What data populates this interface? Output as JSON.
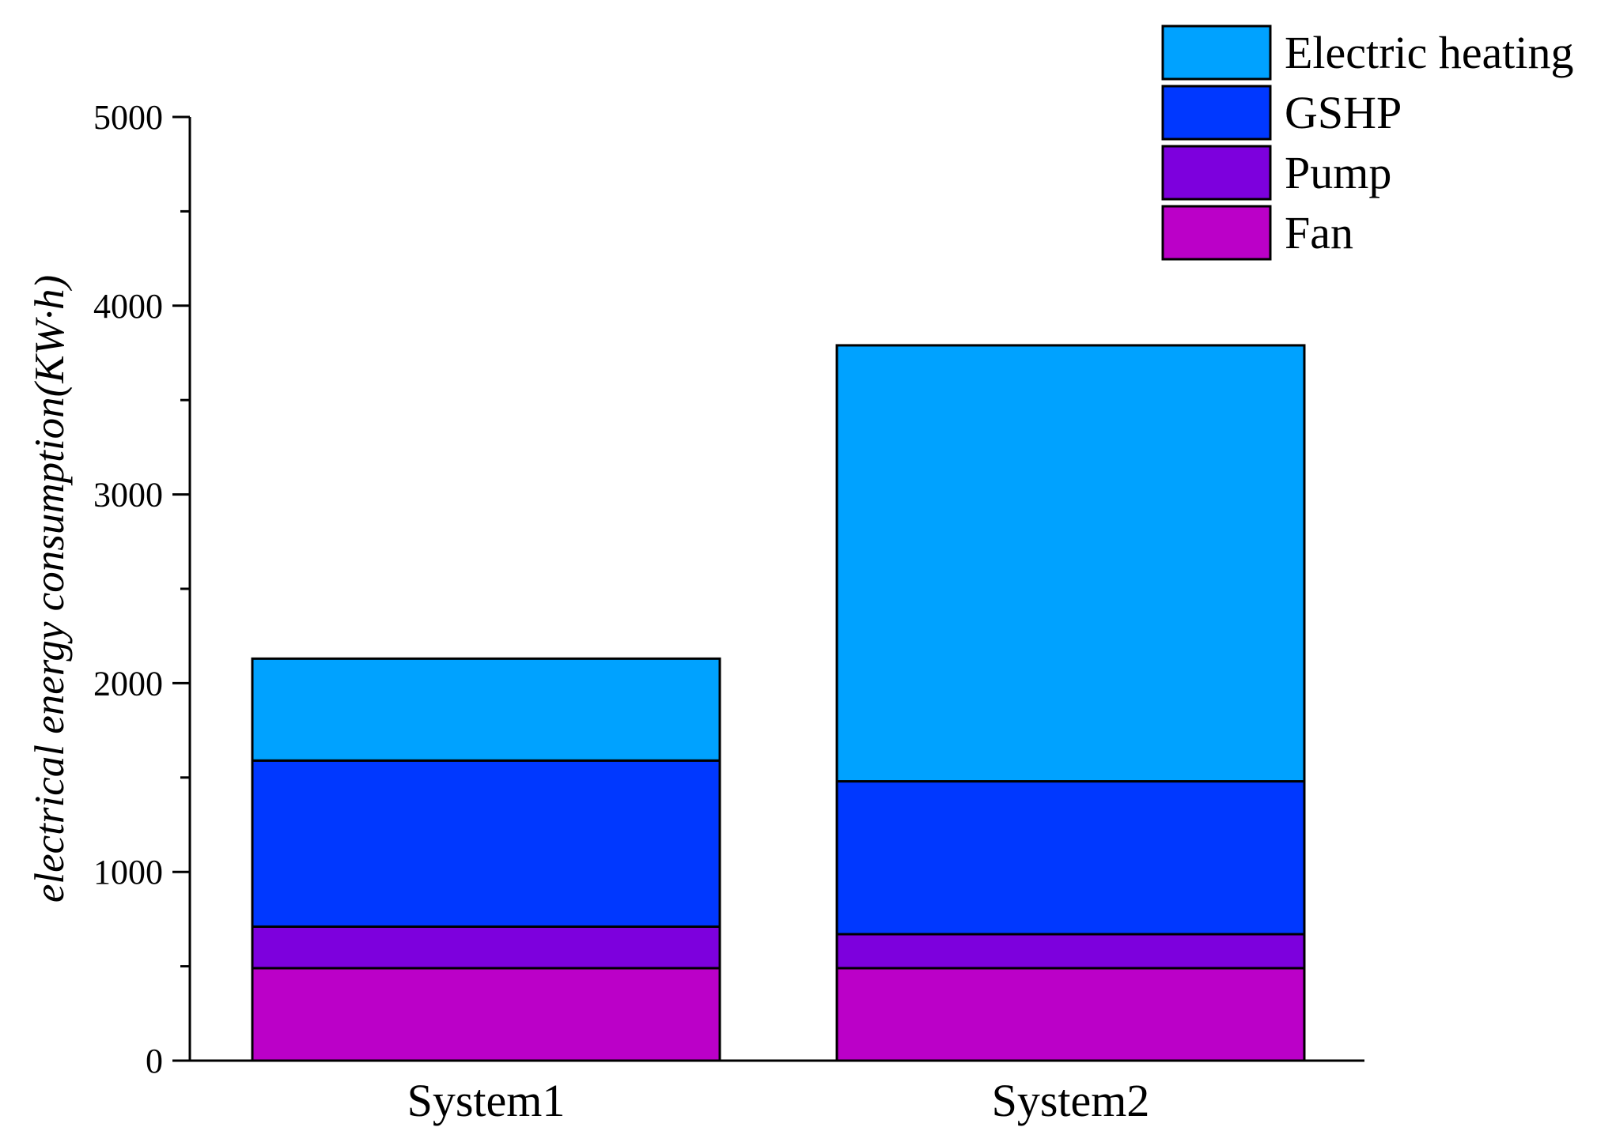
{
  "chart_data": {
    "type": "bar",
    "stacked": true,
    "categories": [
      "System1",
      "System2"
    ],
    "series": [
      {
        "name": "Fan",
        "values": [
          490,
          490
        ],
        "color": "#bb00c8"
      },
      {
        "name": "Pump",
        "values": [
          220,
          180
        ],
        "color": "#7d00dd"
      },
      {
        "name": "GSHP",
        "values": [
          880,
          810
        ],
        "color": "#0038ff"
      },
      {
        "name": "Electric heating",
        "values": [
          540,
          2310
        ],
        "color": "#00a2ff"
      }
    ],
    "ylabel": "electrical energy consumption(KW·h)",
    "xlabel": "",
    "ylim": [
      0,
      5000
    ],
    "yticks": [
      0,
      1000,
      2000,
      3000,
      4000,
      5000
    ],
    "ytick_labels": [
      "0",
      "1000",
      "2000",
      "3000",
      "4000",
      "5000"
    ],
    "grid": false,
    "legend": {
      "position": "top-right",
      "order": [
        "Electric heating",
        "GSHP",
        "Pump",
        "Fan"
      ]
    }
  }
}
